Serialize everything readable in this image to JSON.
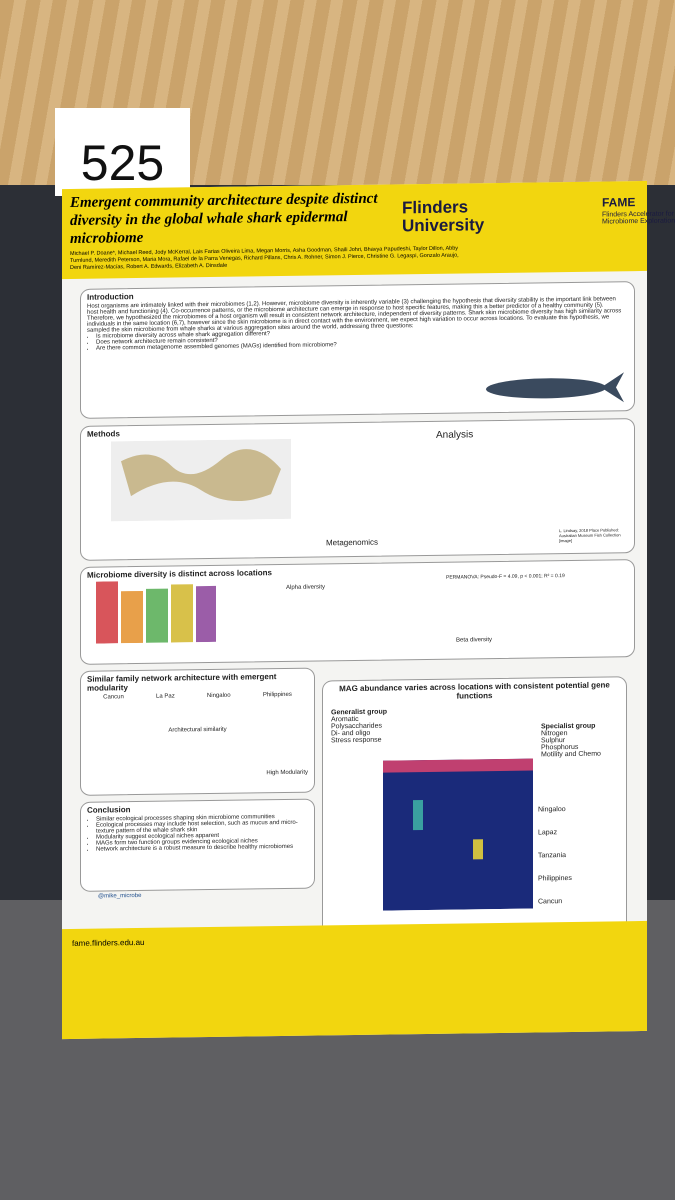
{
  "sign_number": "525",
  "header": {
    "title": "Emergent community architecture despite distinct diversity in the global whale shark epidermal microbiome",
    "authors": "Michael P. Doane*, Michael Reed, Jody McKerral, Lais Farias Oliveira Lima, Megan Morris, Asha Goodman, Shaili Johri, Bhavya Papudeshi, Taylor Dillon, Abby Turnlund, Meredith Peterson, Maria Mora, Rafael de la Parra Venegas, Richard Pillans, Chris A. Rohner, Simon J. Pierce, Christine G. Legaspi, Gonzalo Araujo, Deni Ramírez-Macías, Robert A. Edwards, Elizabeth A. Dinsdale",
    "university": "Flinders University",
    "fame_title": "FAME",
    "fame_subtitle": "Flinders Accelerator for Microbiome Exploration"
  },
  "introduction": {
    "heading": "Introduction",
    "body": "Host organisms are intimately linked with their microbiomes (1,2). However, microbiome diversity is inherently variable (3) challenging the hypothesis that diversity stability is the important link between host health and functioning (4). Co-occurrence patterns, or the microbiome architecture can emerge in response to host specific features, making this a better predictor of a healthy community (5). Therefore, we hypothesized the microbiomes of a host organism will result in consistent network architecture, independent of diversity patterns. Shark skin microbiome diversity has high similarity across individuals in the same location (6,7), however since the skin microbiome is in direct contact with the environment, we expect high variation to occur across locations. To evaluate this hypothesis, we sampled the skin microbiome from whale sharks at various aggregation sites around the world, addressing three questions:",
    "questions": [
      "Is microbiome diversity across whale shark aggregation different?",
      "Does network architecture remain consistent?",
      "Are there common metagenome assembled genomes (MAGs) identified from microbiome?"
    ]
  },
  "methods": {
    "heading": "Methods",
    "analysis": "Analysis",
    "metagenomics": "Metagenomics",
    "credit": "L. Lindsay, 2018 Place Published: Australian Museum Fish Collection [image]"
  },
  "diversity": {
    "heading": "Microbiome diversity is distinct across locations",
    "alpha": "Alpha diversity",
    "permanova": "PERMANOVA: Pseudo-F = 4.09, p < 0.001; R² = 0.19",
    "beta": "Beta diversity"
  },
  "network": {
    "heading": "Similar family network architecture with emergent modularity",
    "locations": [
      "Cancun",
      "La Paz",
      "Ningaloo",
      "Philippines"
    ],
    "similarity": "Architectural similarity",
    "modularity": "High Modularity"
  },
  "mag": {
    "heading": "MAG abundance varies across locations with consistent potential gene functions",
    "generalist_title": "Generalist group",
    "generalist": [
      "Aromatic",
      "Polysaccharides",
      "Di- and oligo",
      "Stress response"
    ],
    "specialist_title": "Specialist group",
    "specialist": [
      "Nitrogen",
      "Sulphur",
      "Phosphorus",
      "Motility and Chemo"
    ],
    "locations": [
      "Ningaloo",
      "Lapaz",
      "Tanzania",
      "Philippines",
      "Cancun"
    ]
  },
  "conclusion": {
    "heading": "Conclusion",
    "items": [
      "Similar ecological processes shaping skin microbiome communities",
      "Ecological processes may include host selection, such as mucus and micro-texture pattern of the whale shark skin",
      "Modularity suggest ecological niches apparent",
      "MAGs form two function groups evidencing ecological niches",
      "Network architecture is a robust measure to describe healthy microbiomes"
    ]
  },
  "handle": "@mike_microbe",
  "url": "fame.flinders.edu.au"
}
